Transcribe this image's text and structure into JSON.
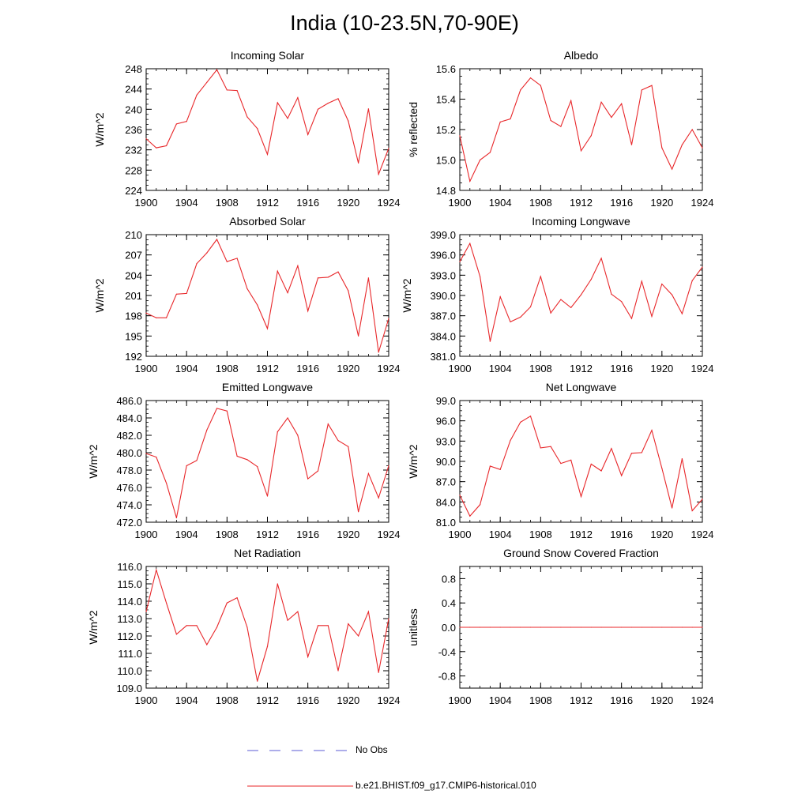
{
  "figure": {
    "title": "India (10-23.5N,70-90E)"
  },
  "legend": [
    {
      "label": "No Obs",
      "color": "#5b5bd6",
      "style": "dashed"
    },
    {
      "label": "b.e21.BHIST.f09_g17.CMIP6-historical.010",
      "color": "#e8272a",
      "style": "solid"
    }
  ],
  "chart_data": [
    {
      "type": "line",
      "title": "Incoming Solar",
      "xlabel": "",
      "ylabel": "W/m^2",
      "xlim": [
        1900,
        1924
      ],
      "ylim": [
        224,
        248
      ],
      "xticks": [
        "1900",
        "1904",
        "1908",
        "1912",
        "1916",
        "1920",
        "1924"
      ],
      "yticks": [
        "224",
        "228",
        "232",
        "236",
        "240",
        "244",
        "248"
      ],
      "x": [
        1900,
        1901,
        1902,
        1903,
        1904,
        1905,
        1906,
        1907,
        1908,
        1909,
        1910,
        1911,
        1912,
        1913,
        1914,
        1915,
        1916,
        1917,
        1918,
        1919,
        1920,
        1921,
        1922,
        1923,
        1924
      ],
      "series": [
        {
          "name": "b.e21.BHIST.f09_g17.CMIP6-historical.010",
          "color": "#e8272a",
          "values": [
            234.2,
            232.4,
            232.8,
            237.1,
            237.6,
            242.8,
            245.3,
            247.8,
            243.8,
            243.7,
            238.5,
            236.2,
            231.1,
            241.3,
            238.2,
            242.3,
            235.0,
            240.0,
            241.2,
            242.1,
            237.7,
            229.4,
            240.1,
            227.2,
            232.3
          ]
        }
      ]
    },
    {
      "type": "line",
      "title": "Albedo",
      "xlabel": "",
      "ylabel": "% reflected",
      "xlim": [
        1900,
        1924
      ],
      "ylim": [
        14.8,
        15.6
      ],
      "xticks": [
        "1900",
        "1904",
        "1908",
        "1912",
        "1916",
        "1920",
        "1924"
      ],
      "yticks": [
        "14.8",
        "15.0",
        "15.2",
        "15.4",
        "15.6"
      ],
      "x": [
        1900,
        1901,
        1902,
        1903,
        1904,
        1905,
        1906,
        1907,
        1908,
        1909,
        1910,
        1911,
        1912,
        1913,
        1914,
        1915,
        1916,
        1917,
        1918,
        1919,
        1920,
        1921,
        1922,
        1923,
        1924
      ],
      "series": [
        {
          "name": "b.e21.BHIST.f09_g17.CMIP6-historical.010",
          "color": "#e8272a",
          "values": [
            15.16,
            14.86,
            15.0,
            15.05,
            15.25,
            15.27,
            15.46,
            15.54,
            15.49,
            15.26,
            15.22,
            15.39,
            15.06,
            15.16,
            15.38,
            15.28,
            15.37,
            15.1,
            15.46,
            15.49,
            15.08,
            14.94,
            15.1,
            15.2,
            15.08
          ]
        }
      ]
    },
    {
      "type": "line",
      "title": "Absorbed Solar",
      "xlabel": "",
      "ylabel": "W/m^2",
      "xlim": [
        1900,
        1924
      ],
      "ylim": [
        192,
        210
      ],
      "xticks": [
        "1900",
        "1904",
        "1908",
        "1912",
        "1916",
        "1920",
        "1924"
      ],
      "yticks": [
        "192",
        "195",
        "198",
        "201",
        "204",
        "207",
        "210"
      ],
      "x": [
        1900,
        1901,
        1902,
        1903,
        1904,
        1905,
        1906,
        1907,
        1908,
        1909,
        1910,
        1911,
        1912,
        1913,
        1914,
        1915,
        1916,
        1917,
        1918,
        1919,
        1920,
        1921,
        1922,
        1923,
        1924
      ],
      "series": [
        {
          "name": "b.e21.BHIST.f09_g17.CMIP6-historical.010",
          "color": "#e8272a",
          "values": [
            198.4,
            197.7,
            197.7,
            201.2,
            201.3,
            205.7,
            207.3,
            209.3,
            206.0,
            206.5,
            202.0,
            199.6,
            196.1,
            204.6,
            201.4,
            205.4,
            198.7,
            203.6,
            203.7,
            204.5,
            201.7,
            195.0,
            203.6,
            192.6,
            197.6
          ]
        }
      ]
    },
    {
      "type": "line",
      "title": "Incoming Longwave",
      "xlabel": "",
      "ylabel": "W/m^2",
      "xlim": [
        1900,
        1924
      ],
      "ylim": [
        381,
        399
      ],
      "xticks": [
        "1900",
        "1904",
        "1908",
        "1912",
        "1916",
        "1920",
        "1924"
      ],
      "yticks": [
        "381.0",
        "384.0",
        "387.0",
        "390.0",
        "393.0",
        "396.0",
        "399.0"
      ],
      "x": [
        1900,
        1901,
        1902,
        1903,
        1904,
        1905,
        1906,
        1907,
        1908,
        1909,
        1910,
        1911,
        1912,
        1913,
        1914,
        1915,
        1916,
        1917,
        1918,
        1919,
        1920,
        1921,
        1922,
        1923,
        1924
      ],
      "series": [
        {
          "name": "b.e21.BHIST.f09_g17.CMIP6-historical.010",
          "color": "#e8272a",
          "values": [
            395.0,
            397.7,
            392.8,
            383.2,
            389.8,
            386.1,
            386.8,
            388.3,
            392.8,
            387.4,
            389.4,
            388.2,
            390.1,
            392.4,
            395.5,
            390.2,
            389.1,
            386.6,
            392.1,
            386.9,
            391.7,
            390.1,
            387.3,
            392.2,
            394.2
          ]
        }
      ]
    },
    {
      "type": "line",
      "title": "Emitted Longwave",
      "xlabel": "",
      "ylabel": "W/m^2",
      "xlim": [
        1900,
        1924
      ],
      "ylim": [
        472,
        486
      ],
      "xticks": [
        "1900",
        "1904",
        "1908",
        "1912",
        "1916",
        "1920",
        "1924"
      ],
      "yticks": [
        "472.0",
        "474.0",
        "476.0",
        "478.0",
        "480.0",
        "482.0",
        "484.0",
        "486.0"
      ],
      "x": [
        1900,
        1901,
        1902,
        1903,
        1904,
        1905,
        1906,
        1907,
        1908,
        1909,
        1910,
        1911,
        1912,
        1913,
        1914,
        1915,
        1916,
        1917,
        1918,
        1919,
        1920,
        1921,
        1922,
        1923,
        1924
      ],
      "series": [
        {
          "name": "b.e21.BHIST.f09_g17.CMIP6-historical.010",
          "color": "#e8272a",
          "values": [
            479.9,
            479.5,
            476.5,
            472.5,
            478.5,
            479.1,
            482.6,
            485.1,
            484.8,
            479.6,
            479.2,
            478.4,
            475.0,
            482.4,
            484.0,
            482.0,
            477.0,
            477.9,
            483.3,
            481.4,
            480.7,
            473.2,
            477.6,
            474.8,
            478.5
          ]
        }
      ]
    },
    {
      "type": "line",
      "title": "Net Longwave",
      "xlabel": "",
      "ylabel": "W/m^2",
      "xlim": [
        1900,
        1924
      ],
      "ylim": [
        81,
        99
      ],
      "xticks": [
        "1900",
        "1904",
        "1908",
        "1912",
        "1916",
        "1920",
        "1924"
      ],
      "yticks": [
        "81.0",
        "84.0",
        "87.0",
        "90.0",
        "93.0",
        "96.0",
        "99.0"
      ],
      "x": [
        1900,
        1901,
        1902,
        1903,
        1904,
        1905,
        1906,
        1907,
        1908,
        1909,
        1910,
        1911,
        1912,
        1913,
        1914,
        1915,
        1916,
        1917,
        1918,
        1919,
        1920,
        1921,
        1922,
        1923,
        1924
      ],
      "series": [
        {
          "name": "b.e21.BHIST.f09_g17.CMIP6-historical.010",
          "color": "#e8272a",
          "values": [
            85.0,
            81.9,
            83.6,
            89.3,
            88.8,
            93.1,
            95.8,
            96.7,
            92.0,
            92.2,
            89.7,
            90.2,
            84.8,
            89.6,
            88.6,
            91.9,
            87.9,
            91.2,
            91.3,
            94.6,
            89.0,
            83.1,
            90.4,
            82.7,
            84.4
          ]
        }
      ]
    },
    {
      "type": "line",
      "title": "Net Radiation",
      "xlabel": "",
      "ylabel": "W/m^2",
      "xlim": [
        1900,
        1924
      ],
      "ylim": [
        109,
        116
      ],
      "xticks": [
        "1900",
        "1904",
        "1908",
        "1912",
        "1916",
        "1920",
        "1924"
      ],
      "yticks": [
        "109.0",
        "110.0",
        "111.0",
        "112.0",
        "113.0",
        "114.0",
        "115.0",
        "116.0"
      ],
      "x": [
        1900,
        1901,
        1902,
        1903,
        1904,
        1905,
        1906,
        1907,
        1908,
        1909,
        1910,
        1911,
        1912,
        1913,
        1914,
        1915,
        1916,
        1917,
        1918,
        1919,
        1920,
        1921,
        1922,
        1923,
        1924
      ],
      "series": [
        {
          "name": "b.e21.BHIST.f09_g17.CMIP6-historical.010",
          "color": "#e8272a",
          "values": [
            113.4,
            115.8,
            113.9,
            112.1,
            112.6,
            112.6,
            111.5,
            112.5,
            113.9,
            114.2,
            112.5,
            109.4,
            111.4,
            115.0,
            112.9,
            113.4,
            110.8,
            112.6,
            112.6,
            110.0,
            112.7,
            112.0,
            113.4,
            109.9,
            113.0
          ]
        }
      ]
    },
    {
      "type": "line",
      "title": "Ground Snow Covered Fraction",
      "xlabel": "",
      "ylabel": "unitless",
      "xlim": [
        1900,
        1924
      ],
      "ylim": [
        -1.0,
        1.0
      ],
      "xticks": [
        "1900",
        "1904",
        "1908",
        "1912",
        "1916",
        "1920",
        "1924"
      ],
      "yticks": [
        "-0.8",
        "-0.4",
        "0.0",
        "0.4",
        "0.8"
      ],
      "x": [
        1900,
        1901,
        1902,
        1903,
        1904,
        1905,
        1906,
        1907,
        1908,
        1909,
        1910,
        1911,
        1912,
        1913,
        1914,
        1915,
        1916,
        1917,
        1918,
        1919,
        1920,
        1921,
        1922,
        1923,
        1924
      ],
      "series": [
        {
          "name": "b.e21.BHIST.f09_g17.CMIP6-historical.010",
          "color": "#e8272a",
          "values": [
            0,
            0,
            0,
            0,
            0,
            0,
            0,
            0,
            0,
            0,
            0,
            0,
            0,
            0,
            0,
            0,
            0,
            0,
            0,
            0,
            0,
            0,
            0,
            0,
            0
          ]
        }
      ]
    }
  ]
}
